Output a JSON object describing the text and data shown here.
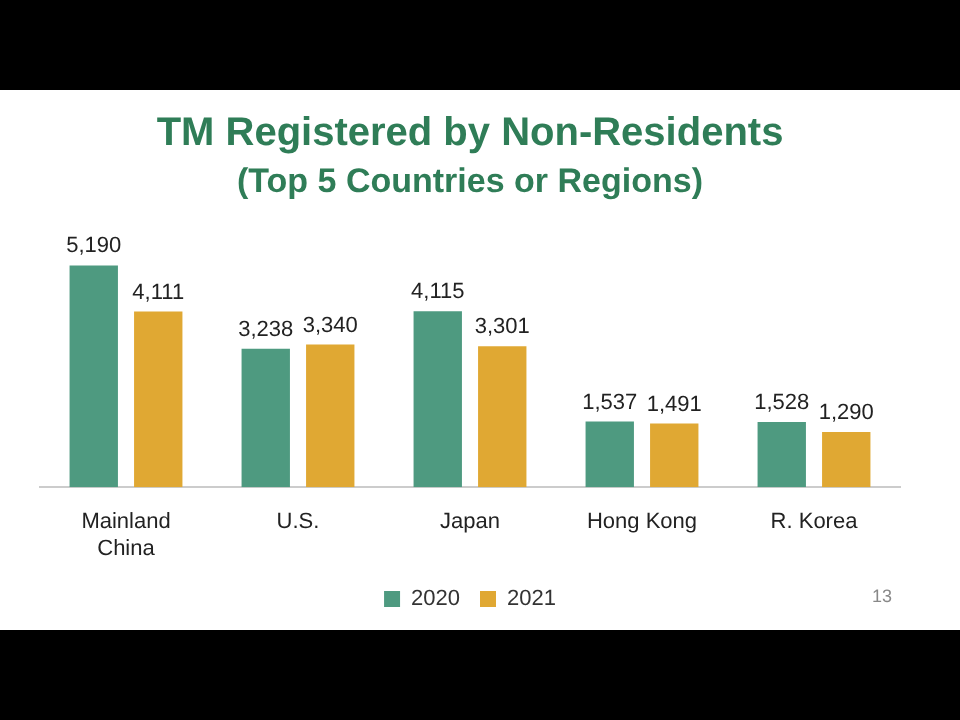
{
  "chart_data": {
    "type": "bar",
    "title": "TM Registered by Non-Residents",
    "subtitle": "(Top 5 Countries or Regions)",
    "categories": [
      "Mainland China",
      "U.S.",
      "Japan",
      "Hong Kong",
      "R. Korea"
    ],
    "series": [
      {
        "name": "2020",
        "color": "#4e9a80",
        "values": [
          5190,
          3238,
          4115,
          1537,
          1528
        ],
        "value_labels": [
          "5,190",
          "3,238",
          "4,115",
          "1,537",
          "1,528"
        ]
      },
      {
        "name": "2021",
        "color": "#e0a833",
        "values": [
          4111,
          3340,
          3301,
          1491,
          1290
        ],
        "value_labels": [
          "4,111",
          "3,340",
          "3,301",
          "1,491",
          "1,290"
        ]
      }
    ],
    "legend": "bottom",
    "annotations": [
      "13"
    ]
  }
}
